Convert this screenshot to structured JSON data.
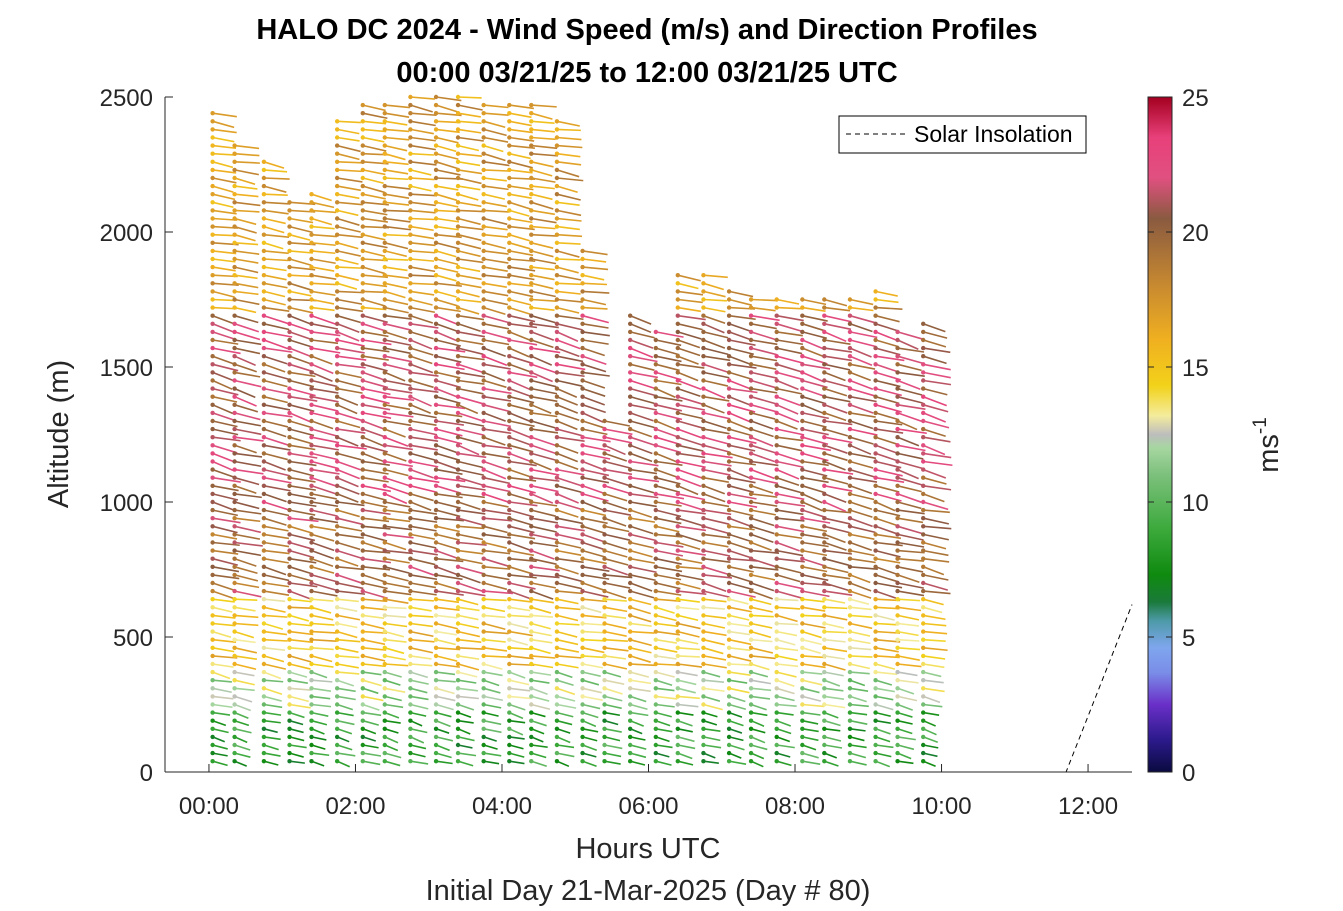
{
  "chart_data": {
    "type": "quiver-profile",
    "title": "HALO DC 2024 - Wind Speed (m/s) and Direction Profiles",
    "subtitle": "00:00 03/21/25 to 12:00 03/21/25  UTC",
    "xlabel": "Hours UTC",
    "xlabel2": "Initial Day 21-Mar-2025 (Day # 80)",
    "ylabel": "Altitude (m)",
    "x_ticks": [
      {
        "hour": 0,
        "label": "00:00"
      },
      {
        "hour": 2,
        "label": "02:00"
      },
      {
        "hour": 4,
        "label": "04:00"
      },
      {
        "hour": 6,
        "label": "06:00"
      },
      {
        "hour": 8,
        "label": "08:00"
      },
      {
        "hour": 10,
        "label": "10:00"
      },
      {
        "hour": 12,
        "label": "12:00"
      }
    ],
    "xlim_hours": [
      -0.6,
      12.6
    ],
    "y_ticks": [
      0,
      500,
      1000,
      1500,
      2000,
      2500
    ],
    "ylim": [
      0,
      2500
    ],
    "colorbar": {
      "label": "ms",
      "label_superscript": "-1",
      "range": [
        0,
        25
      ],
      "ticks": [
        0,
        5,
        10,
        15,
        20,
        25
      ],
      "stops": [
        {
          "v": 0,
          "c": "#0a0a40"
        },
        {
          "v": 1.2,
          "c": "#2c1a8c"
        },
        {
          "v": 2.5,
          "c": "#6a2fc8"
        },
        {
          "v": 3.7,
          "c": "#7a8ee8"
        },
        {
          "v": 4.6,
          "c": "#7fa6ee"
        },
        {
          "v": 5.6,
          "c": "#4d9aa8"
        },
        {
          "v": 6.3,
          "c": "#1a7a3a"
        },
        {
          "v": 7.3,
          "c": "#0f8a0f"
        },
        {
          "v": 9.0,
          "c": "#3caa3c"
        },
        {
          "v": 11.0,
          "c": "#7cc07c"
        },
        {
          "v": 12.0,
          "c": "#a6d6a0"
        },
        {
          "v": 12.5,
          "c": "#bdbdbd"
        },
        {
          "v": 13.2,
          "c": "#f4ec9c"
        },
        {
          "v": 14.3,
          "c": "#f2d21a"
        },
        {
          "v": 16.0,
          "c": "#f0b020"
        },
        {
          "v": 18.0,
          "c": "#c88a30"
        },
        {
          "v": 20.5,
          "c": "#8a5a40"
        },
        {
          "v": 22.0,
          "c": "#e05080"
        },
        {
          "v": 23.5,
          "c": "#e8407a"
        },
        {
          "v": 25,
          "c": "#a40020"
        }
      ]
    },
    "legend": {
      "label": "Solar Insolation",
      "placement": "top-right"
    },
    "solar_insolation_line": [
      {
        "hour": -0.6,
        "alt": 0
      },
      {
        "hour": 11.7,
        "alt": 0
      },
      {
        "hour": 12.6,
        "alt": 620
      }
    ],
    "profile_times_hours": [
      0.05,
      0.35,
      0.75,
      1.1,
      1.4,
      1.75,
      2.1,
      2.4,
      2.75,
      3.1,
      3.4,
      3.75,
      4.1,
      4.4,
      4.75,
      5.1,
      5.4,
      5.75,
      6.1,
      6.4,
      6.75,
      7.1,
      7.4,
      7.75,
      8.1,
      8.4,
      8.75,
      9.1,
      9.4,
      9.75
    ],
    "profile_tops_m": [
      2450,
      2320,
      2280,
      2130,
      2150,
      2420,
      2480,
      2480,
      2500,
      2500,
      2500,
      2480,
      2480,
      2480,
      2420,
      1950,
      1320,
      1700,
      1650,
      1850,
      1850,
      1800,
      1750,
      1750,
      1750,
      1750,
      1750,
      1800,
      1650,
      1680
    ],
    "speed_bands": [
      {
        "from_m": 0,
        "to_m": 250,
        "speed_ms": 8.5,
        "dir_deg": 300
      },
      {
        "from_m": 250,
        "to_m": 400,
        "speed_ms": 12,
        "dir_deg": 295
      },
      {
        "from_m": 400,
        "to_m": 650,
        "speed_ms": 15,
        "dir_deg": 290
      },
      {
        "from_m": 650,
        "to_m": 1000,
        "speed_ms": 20,
        "dir_deg": 295
      },
      {
        "from_m": 1000,
        "to_m": 1700,
        "speed_ms": 21,
        "dir_deg": 300
      },
      {
        "from_m": 1700,
        "to_m": 2500,
        "speed_ms": 17,
        "dir_deg": 290
      }
    ]
  }
}
